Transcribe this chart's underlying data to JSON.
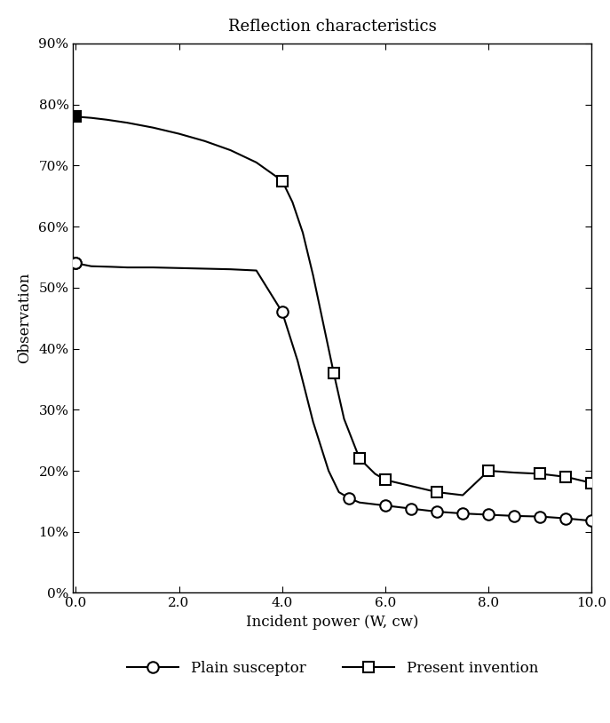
{
  "title": "Reflection characteristics",
  "xlabel": "Incident power (W, cw)",
  "ylabel": "Observation",
  "xlim": [
    -0.05,
    10.0
  ],
  "ylim": [
    0.0,
    0.9
  ],
  "xticks": [
    0.0,
    2.0,
    4.0,
    6.0,
    8.0,
    10.0
  ],
  "yticks": [
    0.0,
    0.1,
    0.2,
    0.3,
    0.4,
    0.5,
    0.6,
    0.7,
    0.8,
    0.9
  ],
  "plain_susceptor": {
    "line_x": [
      0.0,
      0.3,
      0.7,
      1.0,
      1.5,
      2.0,
      2.5,
      3.0,
      3.5,
      4.0,
      4.3,
      4.6,
      4.9,
      5.1,
      5.3,
      5.5,
      6.0,
      6.5,
      7.0,
      7.5,
      8.0,
      8.5,
      9.0,
      9.5,
      10.0
    ],
    "line_y": [
      0.54,
      0.535,
      0.534,
      0.533,
      0.533,
      0.532,
      0.531,
      0.53,
      0.528,
      0.46,
      0.38,
      0.28,
      0.2,
      0.165,
      0.155,
      0.148,
      0.143,
      0.138,
      0.133,
      0.13,
      0.128,
      0.126,
      0.125,
      0.122,
      0.118
    ],
    "marker_x": [
      0.0,
      4.0,
      5.3,
      6.0,
      6.5,
      7.0,
      7.5,
      8.0,
      8.5,
      9.0,
      9.5,
      10.0
    ],
    "marker_y": [
      0.54,
      0.46,
      0.155,
      0.143,
      0.138,
      0.133,
      0.13,
      0.128,
      0.126,
      0.125,
      0.122,
      0.118
    ],
    "label": "Plain susceptor"
  },
  "present_invention": {
    "line_x": [
      0.0,
      0.3,
      0.6,
      1.0,
      1.5,
      2.0,
      2.5,
      3.0,
      3.5,
      4.0,
      4.2,
      4.4,
      4.6,
      4.8,
      5.0,
      5.2,
      5.5,
      5.8,
      6.0,
      6.5,
      7.0,
      7.5,
      8.0,
      8.5,
      9.0,
      9.5,
      10.0
    ],
    "line_y": [
      0.78,
      0.778,
      0.775,
      0.77,
      0.762,
      0.752,
      0.74,
      0.725,
      0.705,
      0.675,
      0.64,
      0.59,
      0.52,
      0.44,
      0.36,
      0.285,
      0.22,
      0.195,
      0.185,
      0.175,
      0.165,
      0.16,
      0.2,
      0.197,
      0.195,
      0.19,
      0.18
    ],
    "marker_x": [
      0.0,
      4.0,
      5.0,
      5.5,
      6.0,
      7.0,
      8.0,
      9.0,
      9.5,
      10.0
    ],
    "marker_y": [
      0.78,
      0.675,
      0.36,
      0.22,
      0.185,
      0.165,
      0.2,
      0.195,
      0.19,
      0.18
    ],
    "label": "Present invention"
  },
  "line_color": "#000000",
  "background_color": "#ffffff",
  "figsize": [
    6.87,
    8.14
  ],
  "dpi": 100
}
